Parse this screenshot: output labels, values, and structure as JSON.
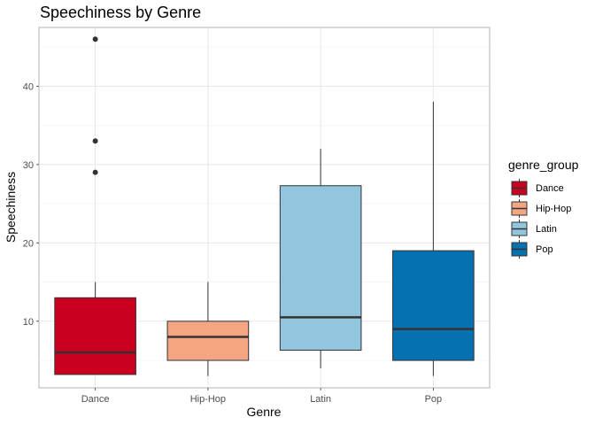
{
  "chart_data": {
    "type": "boxplot",
    "title": "Speechiness by Genre",
    "xlabel": "Genre",
    "ylabel": "Speechiness",
    "ylim": [
      1.5,
      47.5
    ],
    "yticks": [
      10,
      20,
      30,
      40
    ],
    "grid": true,
    "legend": {
      "title": "genre_group",
      "placement": "right"
    },
    "categories": [
      "Dance",
      "Hip-Hop",
      "Latin",
      "Pop"
    ],
    "series": [
      {
        "name": "Dance",
        "color": "#CA0020",
        "min": 3.2,
        "q1": 3.2,
        "median": 6.0,
        "q3": 13.0,
        "max": 15.0,
        "outliers": [
          29,
          33,
          46
        ]
      },
      {
        "name": "Hip-Hop",
        "color": "#F4A582",
        "min": 3.0,
        "q1": 5.0,
        "median": 8.0,
        "q3": 10.0,
        "max": 15.0,
        "outliers": []
      },
      {
        "name": "Latin",
        "color": "#92C5DE",
        "min": 4.0,
        "q1": 6.3,
        "median": 10.5,
        "q3": 27.3,
        "max": 32.0,
        "outliers": []
      },
      {
        "name": "Pop",
        "color": "#0571B0",
        "min": 3.0,
        "q1": 5.0,
        "median": 9.0,
        "q3": 19.0,
        "max": 38.0,
        "outliers": []
      }
    ]
  }
}
